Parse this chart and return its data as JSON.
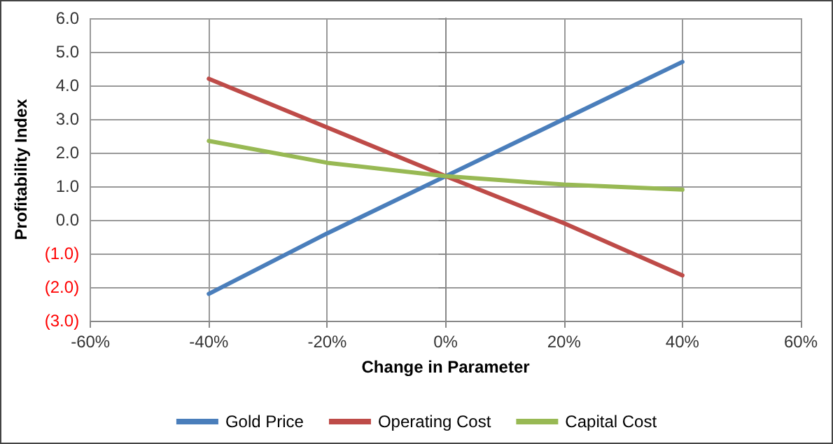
{
  "chart_data": {
    "type": "line",
    "xlabel": "Change in Parameter",
    "ylabel": "Profitability Index",
    "x": [
      -40,
      -20,
      0,
      20,
      40
    ],
    "series": [
      {
        "name": "Gold Price",
        "color": "#4a7ebb",
        "values": [
          -2.2,
          -0.4,
          1.3,
          3.0,
          4.7
        ]
      },
      {
        "name": "Operating Cost",
        "color": "#be4b48",
        "values": [
          4.2,
          2.75,
          1.3,
          -0.1,
          -1.65
        ]
      },
      {
        "name": "Capital Cost",
        "color": "#98b954",
        "values": [
          2.35,
          1.7,
          1.3,
          1.05,
          0.9
        ]
      }
    ],
    "xlim": [
      -60,
      60
    ],
    "xticks": [
      {
        "value": -60,
        "label": "-60%"
      },
      {
        "value": -40,
        "label": "-40%"
      },
      {
        "value": -20,
        "label": "-20%"
      },
      {
        "value": 0,
        "label": "0%"
      },
      {
        "value": 20,
        "label": "20%"
      },
      {
        "value": 40,
        "label": "40%"
      },
      {
        "value": 60,
        "label": "60%"
      }
    ],
    "ylim": [
      -3,
      6
    ],
    "yticks": [
      {
        "value": -3,
        "label": "(3.0)"
      },
      {
        "value": -2,
        "label": "(2.0)"
      },
      {
        "value": -1,
        "label": "(1.0)"
      },
      {
        "value": 0,
        "label": "0.0"
      },
      {
        "value": 1,
        "label": "1.0"
      },
      {
        "value": 2,
        "label": "2.0"
      },
      {
        "value": 3,
        "label": "3.0"
      },
      {
        "value": 4,
        "label": "4.0"
      },
      {
        "value": 5,
        "label": "5.0"
      },
      {
        "value": 6,
        "label": "6.0"
      }
    ],
    "grid": true,
    "legend": "bottom",
    "marker": "none",
    "line_style": "solid"
  }
}
